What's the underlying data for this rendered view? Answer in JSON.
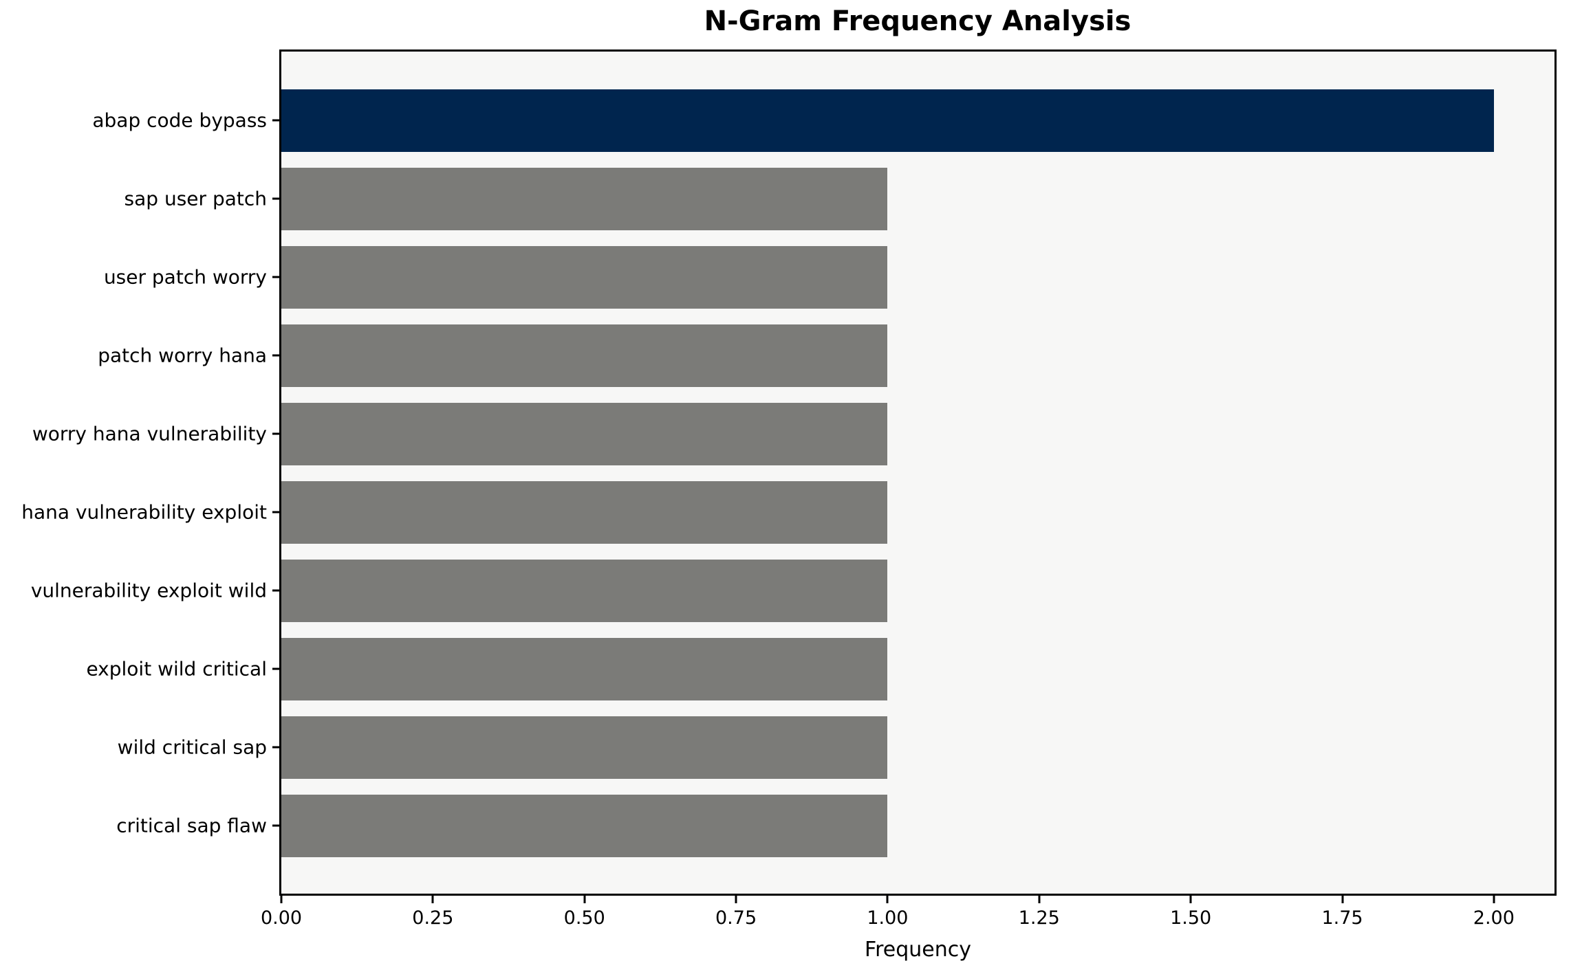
{
  "chart_data": {
    "type": "bar",
    "orientation": "horizontal",
    "title": "N-Gram Frequency Analysis",
    "xlabel": "Frequency",
    "ylabel": "",
    "categories": [
      "abap code bypass",
      "sap user patch",
      "user patch worry",
      "patch worry hana",
      "worry hana vulnerability",
      "hana vulnerability exploit",
      "vulnerability exploit wild",
      "exploit wild critical",
      "wild critical sap",
      "critical sap flaw"
    ],
    "values": [
      2,
      1,
      1,
      1,
      1,
      1,
      1,
      1,
      1,
      1
    ],
    "bar_colors": [
      "#00254E",
      "#7B7B78",
      "#7B7B78",
      "#7B7B78",
      "#7B7B78",
      "#7B7B78",
      "#7B7B78",
      "#7B7B78",
      "#7B7B78",
      "#7B7B78"
    ],
    "xlim": [
      0,
      2.1
    ],
    "x_ticks": [
      0.0,
      0.25,
      0.5,
      0.75,
      1.0,
      1.25,
      1.5,
      1.75,
      2.0
    ],
    "x_tick_labels": [
      "0.00",
      "0.25",
      "0.50",
      "0.75",
      "1.00",
      "1.25",
      "1.50",
      "1.75",
      "2.00"
    ],
    "grid": false,
    "legend_position": "none"
  },
  "colors": {
    "highlight_bar": "#00254E",
    "default_bar": "#7B7B78",
    "plot_background": "#F7F7F6",
    "figure_background": "#FFFFFF",
    "axis": "#000000",
    "text": "#000000"
  }
}
